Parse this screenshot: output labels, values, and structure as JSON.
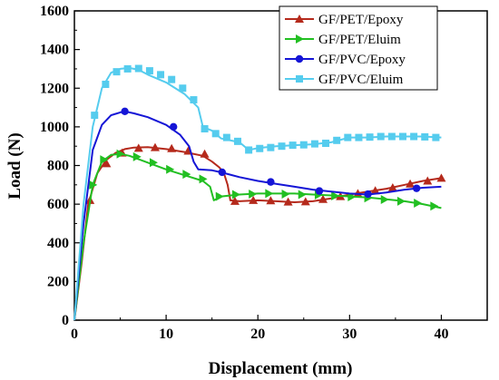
{
  "chart_data": {
    "type": "line",
    "title": "",
    "xlabel": "Displacement (mm)",
    "ylabel": "Load (N)",
    "xlim": [
      0,
      45
    ],
    "ylim": [
      0,
      1600
    ],
    "xticks": [
      0,
      10,
      20,
      30,
      40
    ],
    "yticks": [
      0,
      200,
      400,
      600,
      800,
      1000,
      1200,
      1400,
      1600
    ],
    "legend_position": "top-right",
    "grid": false,
    "series": [
      {
        "name": "GF/PET/Epoxy",
        "color": "#b52a1c",
        "marker": "triangle-up",
        "x": [
          0,
          0.8,
          1.5,
          2.5,
          3.5,
          4.5,
          5.5,
          6.5,
          8,
          10,
          12,
          14,
          15,
          15.8,
          16.3,
          16.7,
          17,
          18,
          20,
          22,
          24,
          26,
          28,
          30,
          32,
          34,
          36,
          38,
          40
        ],
        "y": [
          0,
          300,
          600,
          760,
          830,
          865,
          885,
          893,
          895,
          885,
          870,
          850,
          820,
          790,
          760,
          700,
          620,
          615,
          620,
          615,
          610,
          615,
          630,
          650,
          665,
          680,
          700,
          720,
          735
        ],
        "marker_x": [
          1.7,
          3.5,
          5.2,
          7.0,
          8.8,
          10.6,
          12.4,
          14.2,
          17.5,
          19.5,
          21.4,
          23.3,
          25.2,
          27.1,
          29.0,
          30.9,
          32.8,
          34.7,
          36.6,
          38.5,
          40
        ],
        "marker_y": [
          620,
          810,
          865,
          890,
          893,
          888,
          875,
          860,
          615,
          620,
          618,
          612,
          613,
          625,
          640,
          655,
          670,
          685,
          705,
          720,
          735
        ]
      },
      {
        "name": "GF/PET/Eluim",
        "color": "#22bf22",
        "marker": "triangle-right",
        "x": [
          0,
          1,
          2,
          3,
          4,
          5,
          6,
          8,
          10,
          12,
          14,
          14.8,
          15.2,
          16,
          18,
          20,
          22,
          24,
          26,
          28,
          30,
          32,
          34,
          36,
          38,
          40
        ],
        "y": [
          0,
          400,
          700,
          820,
          855,
          860,
          850,
          815,
          780,
          750,
          720,
          690,
          620,
          640,
          650,
          655,
          655,
          655,
          650,
          645,
          640,
          635,
          625,
          615,
          600,
          580
        ],
        "marker_x": [
          2.0,
          3.2,
          5.0,
          6.8,
          8.6,
          10.4,
          12.2,
          14.0,
          15.8,
          17.6,
          19.4,
          21.2,
          23.0,
          24.8,
          26.6,
          28.4,
          30.2,
          32.0,
          33.8,
          35.6,
          37.4,
          39.2
        ],
        "marker_y": [
          700,
          830,
          860,
          845,
          815,
          780,
          755,
          730,
          640,
          650,
          652,
          655,
          652,
          650,
          648,
          643,
          638,
          632,
          624,
          615,
          605,
          590
        ]
      },
      {
        "name": "GF/PVC/Epoxy",
        "color": "#1515d6",
        "marker": "circle",
        "x": [
          0,
          1,
          2,
          3,
          4,
          5,
          5.5,
          6.5,
          8,
          10,
          11.5,
          12.5,
          13,
          13.5,
          15,
          16,
          18,
          20,
          22,
          24,
          26,
          28,
          30,
          32,
          34,
          36,
          38,
          40
        ],
        "y": [
          0,
          500,
          880,
          1010,
          1060,
          1075,
          1080,
          1070,
          1050,
          1010,
          960,
          900,
          820,
          780,
          775,
          765,
          740,
          720,
          705,
          690,
          675,
          665,
          655,
          650,
          660,
          675,
          685,
          690
        ],
        "marker_x": [
          5.5,
          10.8,
          16.1,
          21.4,
          26.7,
          32.0,
          37.3
        ],
        "marker_y": [
          1080,
          1000,
          765,
          715,
          668,
          652,
          682
        ]
      },
      {
        "name": "GF/PVC/Eluim",
        "color": "#55ccee",
        "marker": "square",
        "x": [
          0,
          1,
          2,
          3,
          4,
          5,
          6,
          7,
          8,
          10,
          12,
          13.5,
          14,
          15,
          16,
          18,
          19,
          20,
          22,
          24,
          26,
          28,
          30,
          32,
          34,
          36,
          38,
          40
        ],
        "y": [
          0,
          600,
          1000,
          1200,
          1280,
          1300,
          1305,
          1295,
          1270,
          1230,
          1170,
          1100,
          1000,
          980,
          940,
          920,
          880,
          890,
          900,
          905,
          910,
          920,
          945,
          945,
          950,
          950,
          950,
          945
        ],
        "marker_x": [
          2.2,
          3.4,
          4.6,
          5.8,
          7.0,
          8.2,
          9.4,
          10.6,
          11.8,
          13.0,
          14.2,
          15.4,
          16.6,
          17.8,
          19.0,
          20.2,
          21.4,
          22.6,
          23.8,
          25.0,
          26.2,
          27.4,
          28.6,
          29.8,
          31.0,
          32.2,
          33.4,
          34.6,
          35.8,
          37.0,
          38.2,
          39.4
        ],
        "marker_y": [
          1060,
          1220,
          1285,
          1300,
          1302,
          1290,
          1270,
          1245,
          1200,
          1140,
          990,
          965,
          945,
          925,
          880,
          888,
          893,
          900,
          905,
          907,
          912,
          915,
          930,
          945,
          945,
          947,
          950,
          950,
          950,
          950,
          948,
          945
        ]
      }
    ]
  }
}
